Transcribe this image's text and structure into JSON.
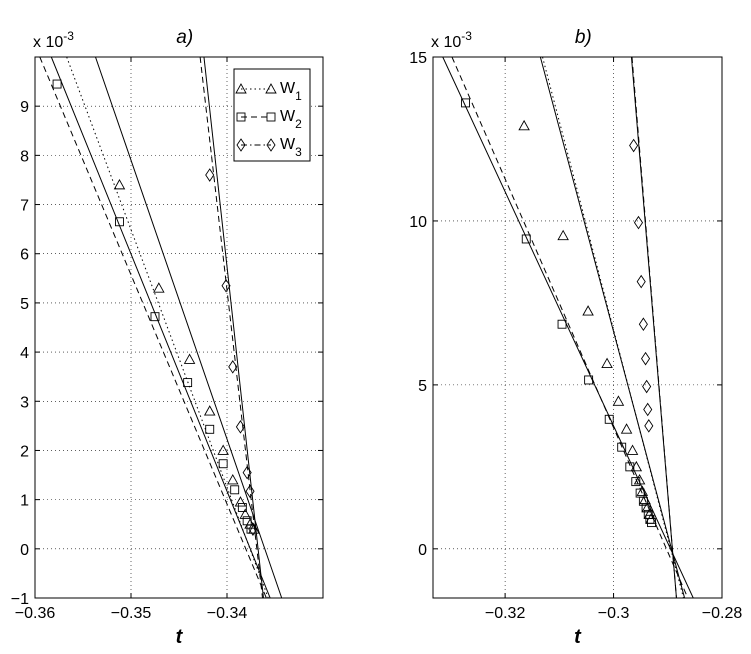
{
  "chart_data": [
    {
      "type": "scatter",
      "panel_label": "a)",
      "xlabel": "t",
      "ylabel": "",
      "y_scale_label": "x 10",
      "y_scale_exp": "-3",
      "xlim": [
        -0.36,
        -0.33
      ],
      "ylim": [
        -1,
        10
      ],
      "xticks": [
        -0.36,
        -0.35,
        -0.34
      ],
      "xtick_labels": [
        "−0.36",
        "−0.35",
        "−0.34"
      ],
      "yticks": [
        -1,
        0,
        1,
        2,
        3,
        4,
        5,
        6,
        7,
        8,
        9
      ],
      "ytick_labels": [
        "−1",
        "0",
        "1",
        "2",
        "3",
        "4",
        "5",
        "6",
        "7",
        "8",
        "9"
      ],
      "grid": true,
      "legend": {
        "placement": "top-right",
        "entries": [
          {
            "base": "W",
            "sub": "1",
            "marker": "triangle",
            "line": "dotted"
          },
          {
            "base": "W",
            "sub": "2",
            "marker": "square",
            "line": "dashed"
          },
          {
            "base": "W",
            "sub": "3",
            "marker": "diamond",
            "line": "dashdot"
          }
        ]
      },
      "series": [
        {
          "marker": "triangle",
          "x": [
            -0.3512,
            -0.3471,
            -0.3439,
            -0.3418,
            -0.3404,
            -0.3394,
            -0.3386,
            -0.3381,
            -0.3376,
            -0.3372
          ],
          "y": [
            7.4,
            5.3,
            3.85,
            2.8,
            2.0,
            1.4,
            0.95,
            0.7,
            0.5,
            0.4
          ]
        },
        {
          "marker": "square",
          "x": [
            -0.3577,
            -0.3512,
            -0.3475,
            -0.3441,
            -0.3418,
            -0.3404,
            -0.3392,
            -0.3384,
            -0.3379,
            -0.3375
          ],
          "y": [
            9.45,
            6.65,
            4.72,
            3.38,
            2.43,
            1.73,
            1.2,
            0.84,
            0.57,
            0.4
          ]
        },
        {
          "marker": "diamond",
          "x": [
            -0.3418,
            -0.3401,
            -0.3394,
            -0.3386,
            -0.3379,
            -0.3376,
            -0.3373
          ],
          "y": [
            7.6,
            5.35,
            3.7,
            2.48,
            1.55,
            1.17,
            0.4
          ]
        }
      ],
      "fit_lines": [
        {
          "style": "solid",
          "x": [
            -0.3537,
            -0.3343
          ],
          "y": [
            10,
            -1
          ]
        },
        {
          "style": "solid",
          "x": [
            -0.3583,
            -0.3355
          ],
          "y": [
            10,
            -1
          ]
        },
        {
          "style": "dotted",
          "x": [
            -0.3567,
            -0.3357
          ],
          "y": [
            10,
            -1
          ]
        },
        {
          "style": "dashed",
          "x": [
            -0.3595,
            -0.3359
          ],
          "y": [
            10,
            -1
          ]
        },
        {
          "style": "solid",
          "x": [
            -0.3424,
            -0.3362
          ],
          "y": [
            10,
            -1
          ]
        },
        {
          "style": "dashed",
          "x": [
            -0.3428,
            -0.3363
          ],
          "y": [
            10,
            -1
          ]
        }
      ]
    },
    {
      "type": "scatter",
      "panel_label": "b)",
      "xlabel": "t",
      "ylabel": "",
      "y_scale_label": "x 10",
      "y_scale_exp": "-3",
      "xlim": [
        -0.3333,
        -0.28
      ],
      "ylim": [
        -1.5,
        15
      ],
      "xticks": [
        -0.32,
        -0.3,
        -0.28
      ],
      "xtick_labels": [
        "−0.32",
        "−0.3",
        "−0.28"
      ],
      "yticks": [
        0,
        5,
        10,
        15
      ],
      "ytick_labels": [
        "0",
        "5",
        "10",
        "15"
      ],
      "grid": true,
      "series": [
        {
          "marker": "triangle",
          "x": [
            -0.3165,
            -0.3093,
            -0.3047,
            -0.3012,
            -0.2991,
            -0.2976,
            -0.2965,
            -0.2958,
            -0.2952,
            -0.2947,
            -0.2942,
            -0.2938,
            -0.2934,
            -0.2931
          ],
          "y": [
            12.9,
            9.55,
            7.25,
            5.65,
            4.5,
            3.65,
            3.0,
            2.5,
            2.1,
            1.75,
            1.5,
            1.25,
            1.05,
            0.9
          ]
        },
        {
          "marker": "square",
          "x": [
            -0.3273,
            -0.3161,
            -0.3095,
            -0.3046,
            -0.3008,
            -0.2985,
            -0.297,
            -0.2959,
            -0.2951,
            -0.2945,
            -0.294,
            -0.2936,
            -0.2933,
            -0.293
          ],
          "y": [
            13.6,
            9.45,
            6.85,
            5.15,
            3.95,
            3.1,
            2.5,
            2.05,
            1.7,
            1.45,
            1.25,
            1.05,
            0.9,
            0.8
          ]
        },
        {
          "marker": "diamond",
          "x": [
            -0.2963,
            -0.2954,
            -0.2949,
            -0.2945,
            -0.2941,
            -0.2939,
            -0.2937,
            -0.2935
          ],
          "y": [
            12.3,
            9.95,
            8.15,
            6.85,
            5.8,
            4.95,
            4.25,
            3.75
          ]
        }
      ],
      "fit_lines": [
        {
          "style": "solid",
          "x": [
            -0.3315,
            -0.2853
          ],
          "y": [
            15,
            -1.5
          ]
        },
        {
          "style": "dashed",
          "x": [
            -0.3298,
            -0.2863
          ],
          "y": [
            15,
            -1.5
          ]
        },
        {
          "style": "solid",
          "x": [
            -0.3135,
            -0.2869
          ],
          "y": [
            15,
            -1.5
          ]
        },
        {
          "style": "dotted",
          "x": [
            -0.3131,
            -0.2871
          ],
          "y": [
            15,
            -1.5
          ]
        },
        {
          "style": "solid",
          "x": [
            -0.2967,
            -0.2884
          ],
          "y": [
            15,
            -1.5
          ]
        },
        {
          "style": "dashed",
          "x": [
            -0.2966,
            -0.2884
          ],
          "y": [
            15,
            -1.5
          ]
        }
      ]
    }
  ]
}
